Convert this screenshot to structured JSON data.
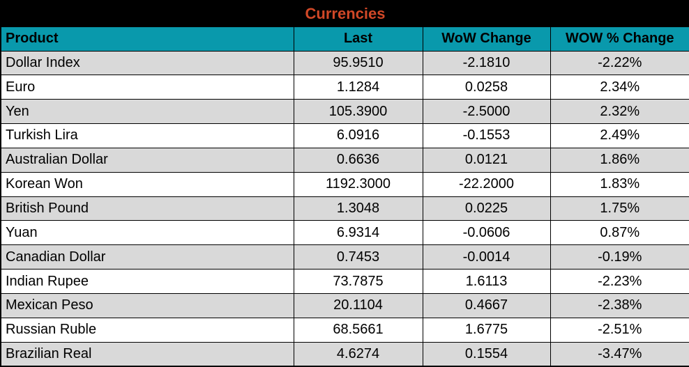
{
  "title": "Currencies",
  "colors": {
    "title_bg": "#000000",
    "title_text": "#D14827",
    "header_bg": "#0999AC",
    "row_alt": "#D9D9D9",
    "row": "#FFFFFF",
    "border": "#000000"
  },
  "columns": [
    "Product",
    "Last",
    "WoW Change",
    "WOW % Change"
  ],
  "rows": [
    {
      "product": "Dollar Index",
      "last": "95.9510",
      "wow_change": "-2.1810",
      "wow_pct_change": "-2.22%"
    },
    {
      "product": "Euro",
      "last": "1.1284",
      "wow_change": "0.0258",
      "wow_pct_change": "2.34%"
    },
    {
      "product": "Yen",
      "last": "105.3900",
      "wow_change": "-2.5000",
      "wow_pct_change": "2.32%"
    },
    {
      "product": "Turkish Lira",
      "last": "6.0916",
      "wow_change": "-0.1553",
      "wow_pct_change": "2.49%"
    },
    {
      "product": "Australian Dollar",
      "last": "0.6636",
      "wow_change": "0.0121",
      "wow_pct_change": "1.86%"
    },
    {
      "product": "Korean Won",
      "last": "1192.3000",
      "wow_change": "-22.2000",
      "wow_pct_change": "1.83%"
    },
    {
      "product": "British Pound",
      "last": "1.3048",
      "wow_change": "0.0225",
      "wow_pct_change": "1.75%"
    },
    {
      "product": "Yuan",
      "last": "6.9314",
      "wow_change": "-0.0606",
      "wow_pct_change": "0.87%"
    },
    {
      "product": "Canadian Dollar",
      "last": "0.7453",
      "wow_change": "-0.0014",
      "wow_pct_change": "-0.19%"
    },
    {
      "product": "Indian Rupee",
      "last": "73.7875",
      "wow_change": "1.6113",
      "wow_pct_change": "-2.23%"
    },
    {
      "product": "Mexican Peso",
      "last": "20.1104",
      "wow_change": "0.4667",
      "wow_pct_change": "-2.38%"
    },
    {
      "product": "Russian Ruble",
      "last": "68.5661",
      "wow_change": "1.6775",
      "wow_pct_change": "-2.51%"
    },
    {
      "product": "Brazilian Real",
      "last": "4.6274",
      "wow_change": "0.1554",
      "wow_pct_change": "-3.47%"
    }
  ],
  "chart_data": {
    "type": "table",
    "title": "Currencies",
    "columns": [
      "Product",
      "Last",
      "WoW Change",
      "WOW % Change"
    ],
    "series": [
      {
        "name": "Last",
        "values": [
          95.951,
          1.1284,
          105.39,
          6.0916,
          0.6636,
          1192.3,
          1.3048,
          6.9314,
          0.7453,
          73.7875,
          20.1104,
          68.5661,
          4.6274
        ]
      },
      {
        "name": "WoW Change",
        "values": [
          -2.181,
          0.0258,
          -2.5,
          -0.1553,
          0.0121,
          -22.2,
          0.0225,
          -0.0606,
          -0.0014,
          1.6113,
          0.4667,
          1.6775,
          0.1554
        ]
      },
      {
        "name": "WOW % Change",
        "values": [
          -2.22,
          2.34,
          2.32,
          2.49,
          1.86,
          1.83,
          1.75,
          0.87,
          -0.19,
          -2.23,
          -2.38,
          -2.51,
          -3.47
        ]
      }
    ],
    "categories": [
      "Dollar Index",
      "Euro",
      "Yen",
      "Turkish Lira",
      "Australian Dollar",
      "Korean Won",
      "British Pound",
      "Yuan",
      "Canadian Dollar",
      "Indian Rupee",
      "Mexican Peso",
      "Russian Ruble",
      "Brazilian Real"
    ]
  }
}
